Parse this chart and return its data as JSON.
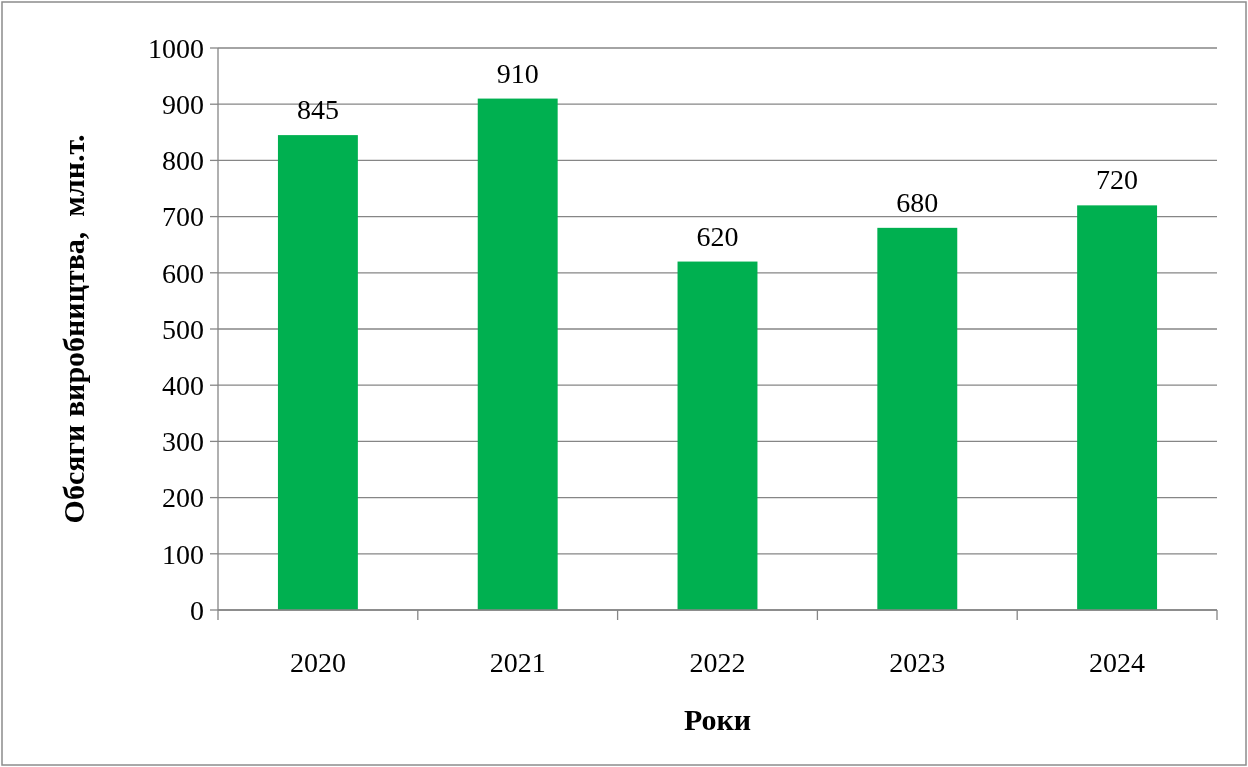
{
  "chart_data": {
    "type": "bar",
    "xlabel": "Роки",
    "ylabel": "Обсяги виробництва,  млн.т.",
    "categories": [
      "2020",
      "2021",
      "2022",
      "2023",
      "2024"
    ],
    "values": [
      845,
      910,
      620,
      680,
      720
    ],
    "color": "#00b050",
    "ylim": [
      0,
      1000
    ],
    "yticks": [
      0,
      100,
      200,
      300,
      400,
      500,
      600,
      700,
      800,
      900,
      1000
    ],
    "grid": "y",
    "data_labels": true
  }
}
